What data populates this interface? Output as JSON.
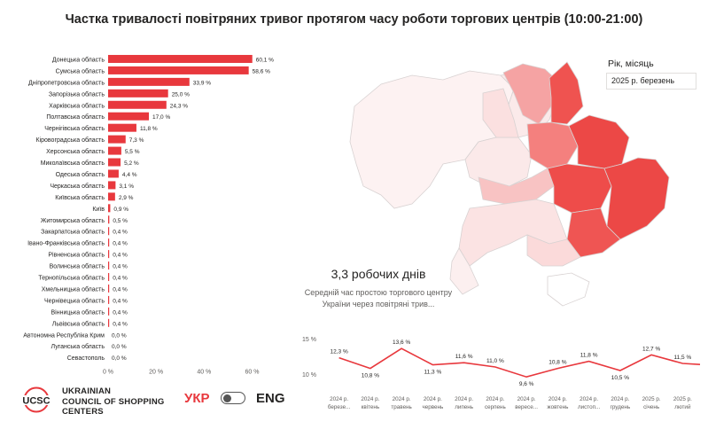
{
  "title": "Частка тривалості повітряних тривог протягом часу роботи торгових центрів (10:00-21:00)",
  "filter": {
    "label": "Рік, місяць",
    "value": "2025 р. березень"
  },
  "kpi": {
    "value": "3,3 робочих днів",
    "description": "Середній час простою торгового центру України через повітряні трив..."
  },
  "brand": {
    "logo_text": "UCSC",
    "name_line1": "UKRAINIAN",
    "name_line2": "COUNCIL OF SHOPPING",
    "name_line3": "CENTERS"
  },
  "language": {
    "ukr": "УКР",
    "eng": "ENG"
  },
  "colors": {
    "accent": "#e8383d",
    "bar": "#e8383d",
    "text": "#252423"
  },
  "chart_data": [
    {
      "type": "bar",
      "orientation": "horizontal",
      "categories": [
        "Донецька область",
        "Сумська область",
        "Дніпропетровська область",
        "Запорізька область",
        "Харківська область",
        "Полтавська область",
        "Чернігівська область",
        "Кіровоградська область",
        "Херсонська область",
        "Миколаївська область",
        "Одеська область",
        "Черкаська область",
        "Київська область",
        "Київ",
        "Житомирська область",
        "Закарпатська область",
        "Івано-Франківська область",
        "Рівненська область",
        "Волинська область",
        "Тернопільська область",
        "Хмельницька область",
        "Чернівецька область",
        "Вінницька область",
        "Львівська область",
        "Автономна Республіка Крим",
        "Луганська область",
        "Севастополь"
      ],
      "values": [
        60.1,
        58.6,
        33.9,
        25.0,
        24.3,
        17.0,
        11.8,
        7.3,
        5.5,
        5.2,
        4.4,
        3.1,
        2.9,
        0.9,
        0.5,
        0.4,
        0.4,
        0.4,
        0.4,
        0.4,
        0.4,
        0.4,
        0.4,
        0.4,
        0.0,
        0.0,
        0.0
      ],
      "data_labels": [
        "60,1 %",
        "58,6 %",
        "33,9 %",
        "25,0 %",
        "24,3 %",
        "17,0 %",
        "11,8 %",
        "7,3 %",
        "5,5 %",
        "5,2 %",
        "4,4 %",
        "3,1 %",
        "2,9 %",
        "0,9 %",
        "0,5 %",
        "0,4 %",
        "0,4 %",
        "0,4 %",
        "0,4 %",
        "0,4 %",
        "0,4 %",
        "0,4 %",
        "0,4 %",
        "0,4 %",
        "0,0 %",
        "0,0 %",
        "0,0 %"
      ],
      "xlim": [
        0,
        65
      ],
      "xticks": [
        0,
        20,
        40,
        60
      ],
      "xtick_labels": [
        "0 %",
        "20 %",
        "40 %",
        "60 %"
      ],
      "grid": false
    },
    {
      "type": "line",
      "categories": [
        "2024 р. березень",
        "2024 р. квітень",
        "2024 р. травень",
        "2024 р. червень",
        "2024 р. липень",
        "2024 р. серпень",
        "2024 р. вересень",
        "2024 р. жовтень",
        "2024 р. листопад",
        "2024 р. грудень",
        "2025 р. січень",
        "2025 р. лютий"
      ],
      "tick_labels": [
        [
          "2024 р.",
          "березе..."
        ],
        [
          "2024 р.",
          "квітень"
        ],
        [
          "2024 р.",
          "травень"
        ],
        [
          "2024 р.",
          "червень"
        ],
        [
          "2024 р.",
          "липень"
        ],
        [
          "2024 р.",
          "серпень"
        ],
        [
          "2024 р.",
          "вересе..."
        ],
        [
          "2024 р.",
          "жовтень"
        ],
        [
          "2024 р.",
          "листоп..."
        ],
        [
          "2024 р.",
          "грудень"
        ],
        [
          "2025 р.",
          "січень"
        ],
        [
          "2025 р.",
          "лютий"
        ]
      ],
      "values": [
        12.3,
        10.8,
        13.6,
        11.3,
        11.6,
        11.0,
        9.6,
        10.8,
        11.8,
        10.5,
        12.7,
        11.5
      ],
      "data_labels": [
        "12,3 %",
        "10,8 %",
        "13,6 %",
        "11,3 %",
        "11,6 %",
        "11,0 %",
        "9,6 %",
        "10,8 %",
        "11,8 %",
        "10,5 %",
        "12,7 %",
        "11,5 %"
      ],
      "ylim": [
        10,
        15
      ],
      "yticks": [
        10,
        15
      ],
      "ytick_labels": [
        "10 %",
        "15 %"
      ],
      "grid": false
    }
  ]
}
